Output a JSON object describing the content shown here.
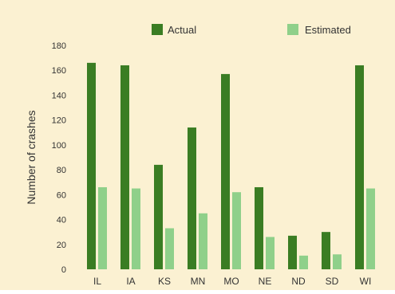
{
  "chart_data": {
    "type": "bar",
    "title": "",
    "xlabel": "",
    "ylabel": "Number of crashes",
    "categories": [
      "IL",
      "IA",
      "KS",
      "MN",
      "MO",
      "NE",
      "ND",
      "SD",
      "WI"
    ],
    "series": [
      {
        "name": "Actual",
        "color": "#3a7d23",
        "values": [
          166,
          164,
          84,
          114,
          157,
          66,
          27,
          30,
          164
        ]
      },
      {
        "name": "Estimated",
        "color": "#8fd08a",
        "values": [
          66,
          65,
          33,
          45,
          62,
          26,
          11,
          12,
          65
        ]
      }
    ],
    "ylim": [
      0,
      180
    ],
    "yticks": [
      0,
      20,
      40,
      60,
      80,
      100,
      120,
      140,
      160,
      180
    ],
    "grid": false,
    "legend_position": "top",
    "background_color": "#fbf1d2"
  }
}
